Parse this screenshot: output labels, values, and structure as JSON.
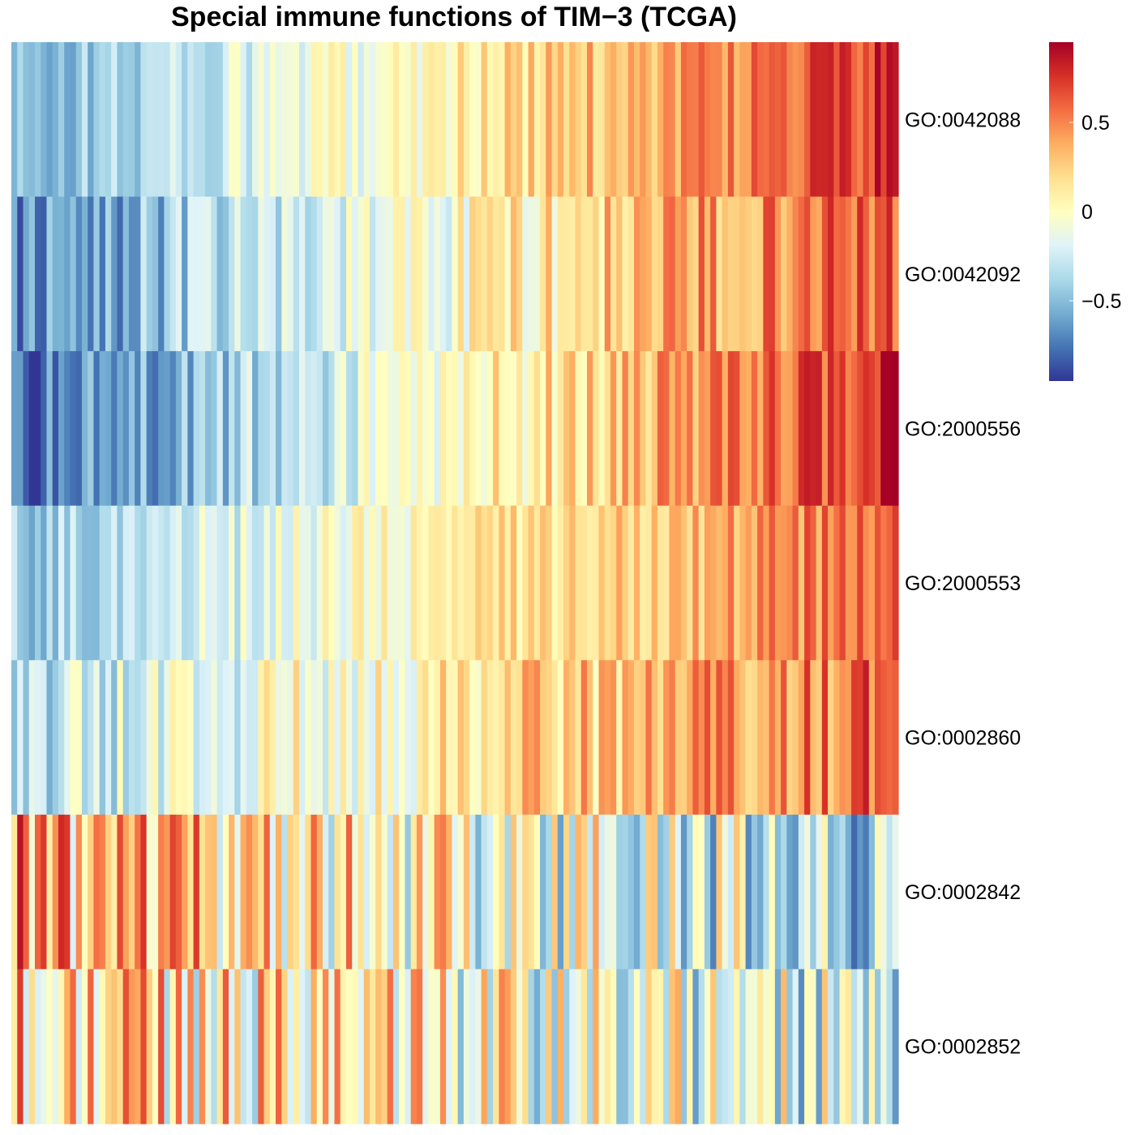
{
  "chart_data": {
    "type": "heatmap",
    "title": "Special immune functions of TIM−3 (TCGA)",
    "rows": [
      "GO:0042088",
      "GO:0042092",
      "GO:2000556",
      "GO:2000553",
      "GO:0002860",
      "GO:0002842",
      "GO:0002852"
    ],
    "n_columns": 151,
    "row_order_trends": [
      {
        "row": "GO:0042088",
        "start": -0.55,
        "end": 0.75,
        "jitter": 0.35
      },
      {
        "row": "GO:0042092",
        "start": -0.7,
        "end": 0.7,
        "jitter": 0.45
      },
      {
        "row": "GO:2000556",
        "start": -0.8,
        "end": 0.8,
        "jitter": 0.4
      },
      {
        "row": "GO:2000553",
        "start": -0.45,
        "end": 0.6,
        "jitter": 0.35
      },
      {
        "row": "GO:0002860",
        "start": -0.35,
        "end": 0.6,
        "jitter": 0.5
      },
      {
        "row": "GO:0002842",
        "start": 0.35,
        "end": -0.35,
        "jitter": 0.9
      },
      {
        "row": "GO:0002852",
        "start": 0.2,
        "end": -0.2,
        "jitter": 0.9
      }
    ],
    "color_scale": {
      "palette": "RdYlBu reversed",
      "min": -0.95,
      "max": 0.95,
      "colors": [
        "#313695",
        "#4575b4",
        "#74add1",
        "#abd9e9",
        "#e0f3f8",
        "#ffffbf",
        "#fee090",
        "#fdae61",
        "#f46d43",
        "#d73027",
        "#a50026"
      ]
    },
    "legend": {
      "placement": "top-right",
      "ticks": [
        {
          "value": 0.5,
          "label": "0.5"
        },
        {
          "value": 0,
          "label": "0"
        },
        {
          "value": -0.5,
          "label": "−0.5"
        }
      ]
    },
    "grid": false
  }
}
